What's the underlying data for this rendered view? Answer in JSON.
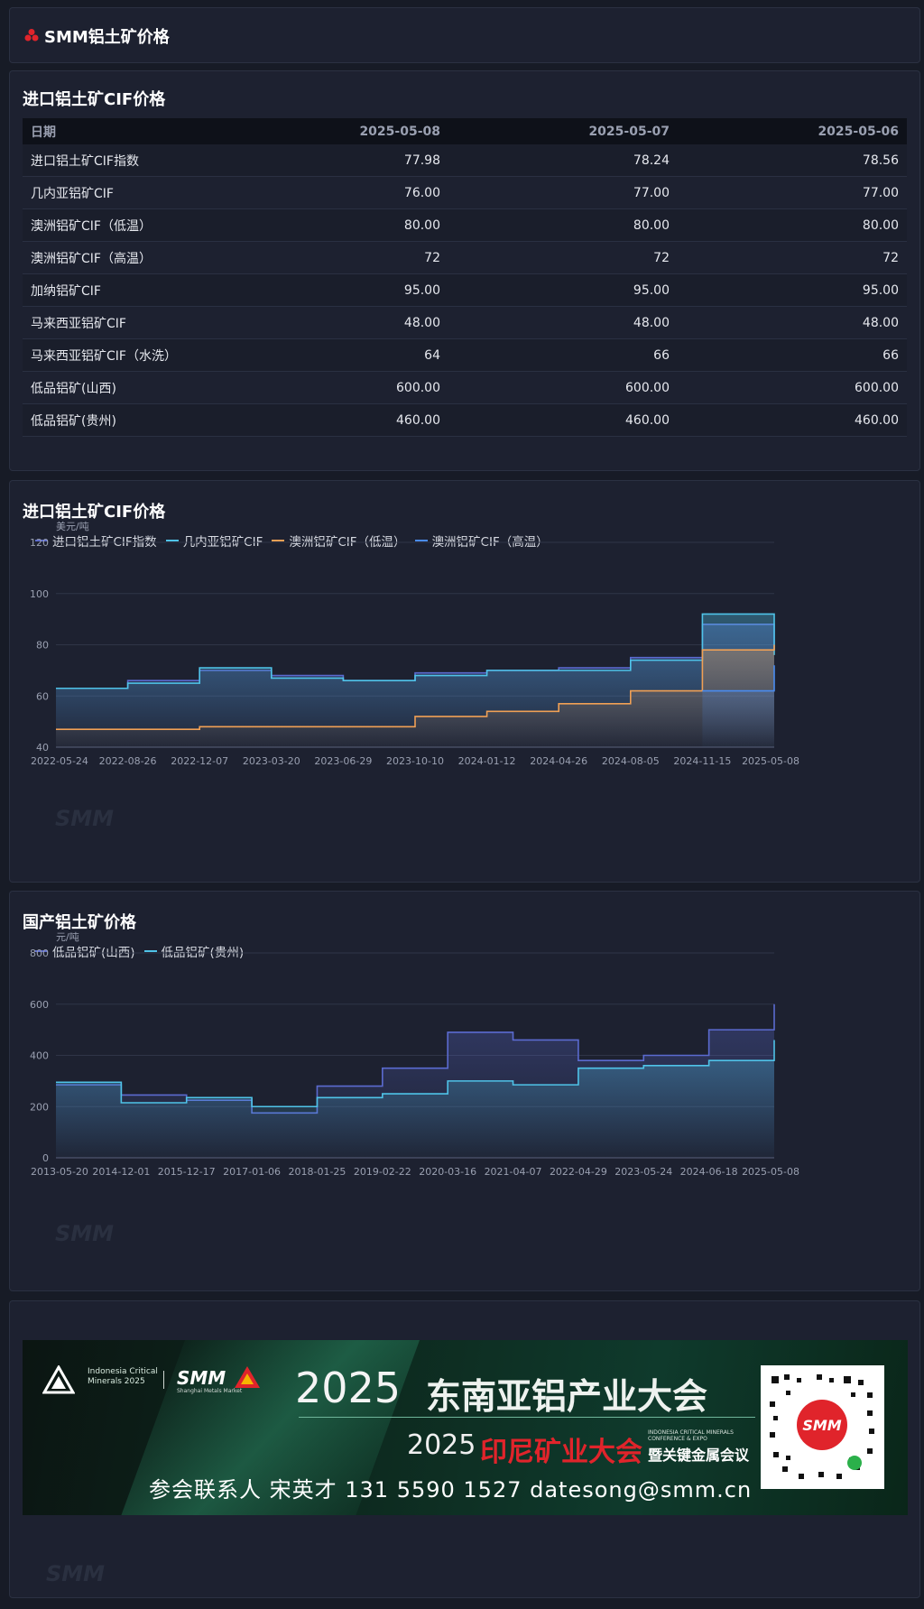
{
  "header": {
    "title": "SMM铝土矿价格"
  },
  "table_section": {
    "title": "进口铝土矿CIF价格",
    "columns": [
      "日期",
      "2025-05-08",
      "2025-05-07",
      "2025-05-06"
    ],
    "rows": [
      {
        "name": "进口铝土矿CIF指数",
        "v": [
          "77.98",
          "78.24",
          "78.56"
        ]
      },
      {
        "name": "几内亚铝矿CIF",
        "v": [
          "76.00",
          "77.00",
          "77.00"
        ]
      },
      {
        "name": "澳洲铝矿CIF（低温）",
        "v": [
          "80.00",
          "80.00",
          "80.00"
        ]
      },
      {
        "name": "澳洲铝矿CIF（高温）",
        "v": [
          "72",
          "72",
          "72"
        ]
      },
      {
        "name": "加纳铝矿CIF",
        "v": [
          "95.00",
          "95.00",
          "95.00"
        ]
      },
      {
        "name": "马来西亚铝矿CIF",
        "v": [
          "48.00",
          "48.00",
          "48.00"
        ]
      },
      {
        "name": "马来西亚铝矿CIF（水洗）",
        "v": [
          "64",
          "66",
          "66"
        ]
      },
      {
        "name": "低品铝矿(山西)",
        "v": [
          "600.00",
          "600.00",
          "600.00"
        ]
      },
      {
        "name": "低品铝矿(贵州)",
        "v": [
          "460.00",
          "460.00",
          "460.00"
        ]
      }
    ]
  },
  "chart_data": [
    {
      "type": "line",
      "title": "进口铝土矿CIF价格",
      "ylabel": "美元/吨",
      "ylim": [
        40,
        120
      ],
      "yticks": [
        40,
        60,
        80,
        100,
        120
      ],
      "x": [
        "2022-05-24",
        "2022-08-26",
        "2022-12-07",
        "2023-03-20",
        "2023-06-29",
        "2023-10-10",
        "2024-01-12",
        "2024-04-26",
        "2024-08-05",
        "2024-11-15",
        "2025-05-08"
      ],
      "xtick_labels": [
        "2022-05-24",
        "2022-08-26",
        "2022-12-07",
        "2023-03-20",
        "2023-06-29",
        "2023-10-10",
        "2024-01-12",
        "2024-04-26",
        "2024-08-05",
        "2024-11-15",
        "2025-05-08"
      ],
      "grid": true,
      "legend": "top-left",
      "series": [
        {
          "name": "进口铝土矿CIF指数",
          "color": "#5b6bd0",
          "values": [
            63,
            66,
            70,
            68,
            66,
            69,
            70,
            71,
            75,
            88,
            78
          ]
        },
        {
          "name": "几内亚铝矿CIF",
          "color": "#4fc3e8",
          "values": [
            63,
            65,
            71,
            67,
            66,
            68,
            70,
            70,
            74,
            92,
            76
          ]
        },
        {
          "name": "澳洲铝矿CIF（低温）",
          "color": "#f0a055",
          "values": [
            47,
            47,
            48,
            48,
            48,
            52,
            54,
            57,
            62,
            78,
            80
          ]
        },
        {
          "name": "澳洲铝矿CIF（高温）",
          "color": "#4a8cf0",
          "values": [
            null,
            null,
            null,
            null,
            null,
            null,
            null,
            null,
            null,
            62,
            72
          ]
        }
      ]
    },
    {
      "type": "line",
      "title": "国产铝土矿价格",
      "ylabel": "元/吨",
      "ylim": [
        0,
        800
      ],
      "yticks": [
        0,
        200,
        400,
        600,
        800
      ],
      "x": [
        "2013-05-20",
        "2014-12-01",
        "2015-12-17",
        "2017-01-06",
        "2018-01-25",
        "2019-02-22",
        "2020-03-16",
        "2021-04-07",
        "2022-04-29",
        "2023-05-24",
        "2024-06-18",
        "2025-05-08"
      ],
      "xtick_labels": [
        "2013-05-20",
        "2014-12-01",
        "2015-12-17",
        "2017-01-06",
        "2018-01-25",
        "2019-02-22",
        "2020-03-16",
        "2021-04-07",
        "2022-04-29",
        "2023-05-24",
        "2024-06-18",
        "2025-05-08"
      ],
      "grid": true,
      "legend": "top-left",
      "series": [
        {
          "name": "低品铝矿(山西)",
          "color": "#5b6bd0",
          "values": [
            285,
            245,
            225,
            175,
            280,
            350,
            490,
            460,
            380,
            400,
            500,
            600
          ]
        },
        {
          "name": "低品铝矿(贵州)",
          "color": "#4fc3e8",
          "values": [
            295,
            215,
            235,
            200,
            235,
            250,
            300,
            285,
            350,
            360,
            380,
            460
          ]
        }
      ]
    }
  ],
  "ad": {
    "logo_text": "Indonesia Critical Minerals 2025",
    "smm": "SMM",
    "smm_sub": "Shanghai Metals Market",
    "year": "2025",
    "title": "东南亚铝产业大会",
    "year2": "2025",
    "title2": "印尼矿业大会",
    "tiny": "INDONESIA CRITICAL MINERALS CONFERENCE & EXPO",
    "title3": "暨关键金属会议",
    "contact": "参会联系人  宋英才  131 5590 1527  datesong@smm.cn"
  },
  "watermark": "SMM",
  "colors": {
    "bg": "#171b26",
    "card": "#1d2130",
    "accent_red": "#e0242b"
  }
}
